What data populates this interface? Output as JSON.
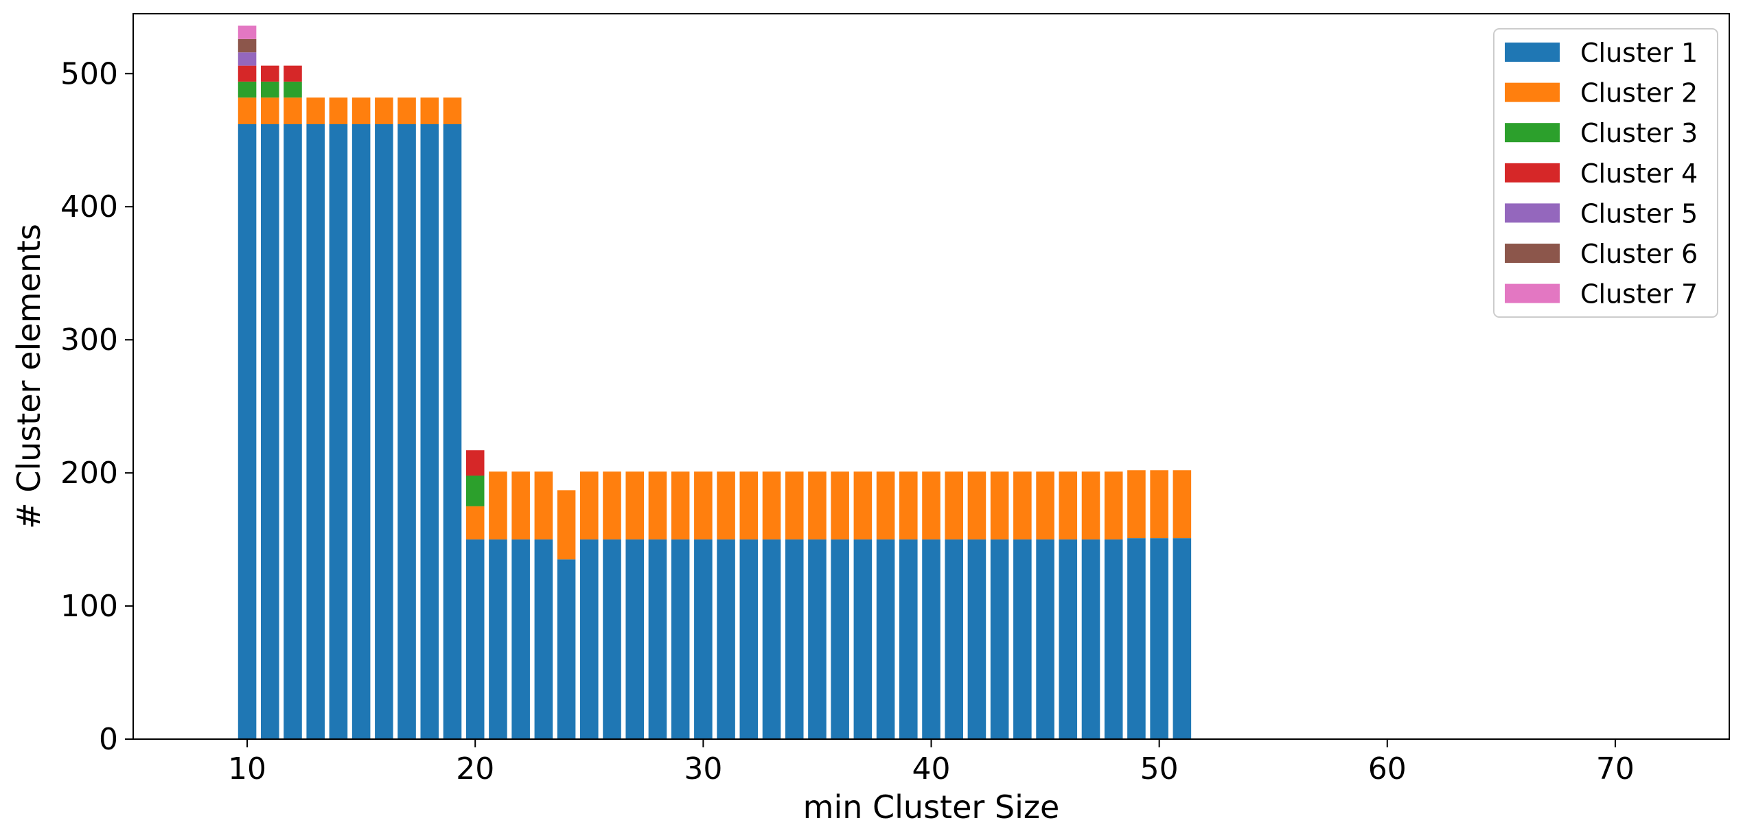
{
  "chart_data": {
    "type": "bar",
    "stacked": true,
    "xlabel": "min Cluster Size",
    "ylabel": "# Cluster elements",
    "xlim": [
      5,
      75
    ],
    "ylim": [
      0,
      545
    ],
    "xticks": [
      10,
      20,
      30,
      40,
      50,
      60,
      70
    ],
    "yticks": [
      0,
      100,
      200,
      300,
      400,
      500
    ],
    "grid": false,
    "legend_position": "top-right",
    "x": [
      10,
      11,
      12,
      13,
      14,
      15,
      16,
      17,
      18,
      19,
      20,
      21,
      22,
      23,
      24,
      25,
      26,
      27,
      28,
      29,
      30,
      31,
      32,
      33,
      34,
      35,
      36,
      37,
      38,
      39,
      40,
      41,
      42,
      43,
      44,
      45,
      46,
      47,
      48,
      49,
      50,
      51
    ],
    "series": [
      {
        "name": "Cluster 1",
        "color": "#1f77b4",
        "values": [
          462,
          462,
          462,
          462,
          462,
          462,
          462,
          462,
          462,
          462,
          150,
          150,
          150,
          150,
          135,
          150,
          150,
          150,
          150,
          150,
          150,
          150,
          150,
          150,
          150,
          150,
          150,
          150,
          150,
          150,
          150,
          150,
          150,
          150,
          150,
          150,
          150,
          150,
          150,
          151,
          151,
          151
        ]
      },
      {
        "name": "Cluster 2",
        "color": "#ff7f0e",
        "values": [
          20,
          20,
          20,
          20,
          20,
          20,
          20,
          20,
          20,
          20,
          25,
          51,
          51,
          51,
          52,
          51,
          51,
          51,
          51,
          51,
          51,
          51,
          51,
          51,
          51,
          51,
          51,
          51,
          51,
          51,
          51,
          51,
          51,
          51,
          51,
          51,
          51,
          51,
          51,
          51,
          51,
          51
        ]
      },
      {
        "name": "Cluster 3",
        "color": "#2ca02c",
        "values": [
          12,
          12,
          12,
          0,
          0,
          0,
          0,
          0,
          0,
          0,
          23,
          0,
          0,
          0,
          0,
          0,
          0,
          0,
          0,
          0,
          0,
          0,
          0,
          0,
          0,
          0,
          0,
          0,
          0,
          0,
          0,
          0,
          0,
          0,
          0,
          0,
          0,
          0,
          0,
          0,
          0,
          0
        ]
      },
      {
        "name": "Cluster 4",
        "color": "#d62728",
        "values": [
          12,
          12,
          12,
          0,
          0,
          0,
          0,
          0,
          0,
          0,
          19,
          0,
          0,
          0,
          0,
          0,
          0,
          0,
          0,
          0,
          0,
          0,
          0,
          0,
          0,
          0,
          0,
          0,
          0,
          0,
          0,
          0,
          0,
          0,
          0,
          0,
          0,
          0,
          0,
          0,
          0,
          0
        ]
      },
      {
        "name": "Cluster 5",
        "color": "#9467bd",
        "values": [
          10,
          0,
          0,
          0,
          0,
          0,
          0,
          0,
          0,
          0,
          0,
          0,
          0,
          0,
          0,
          0,
          0,
          0,
          0,
          0,
          0,
          0,
          0,
          0,
          0,
          0,
          0,
          0,
          0,
          0,
          0,
          0,
          0,
          0,
          0,
          0,
          0,
          0,
          0,
          0,
          0,
          0
        ]
      },
      {
        "name": "Cluster 6",
        "color": "#8c564b",
        "values": [
          10,
          0,
          0,
          0,
          0,
          0,
          0,
          0,
          0,
          0,
          0,
          0,
          0,
          0,
          0,
          0,
          0,
          0,
          0,
          0,
          0,
          0,
          0,
          0,
          0,
          0,
          0,
          0,
          0,
          0,
          0,
          0,
          0,
          0,
          0,
          0,
          0,
          0,
          0,
          0,
          0,
          0
        ]
      },
      {
        "name": "Cluster 7",
        "color": "#e377c2",
        "values": [
          10,
          0,
          0,
          0,
          0,
          0,
          0,
          0,
          0,
          0,
          0,
          0,
          0,
          0,
          0,
          0,
          0,
          0,
          0,
          0,
          0,
          0,
          0,
          0,
          0,
          0,
          0,
          0,
          0,
          0,
          0,
          0,
          0,
          0,
          0,
          0,
          0,
          0,
          0,
          0,
          0,
          0
        ]
      }
    ]
  }
}
